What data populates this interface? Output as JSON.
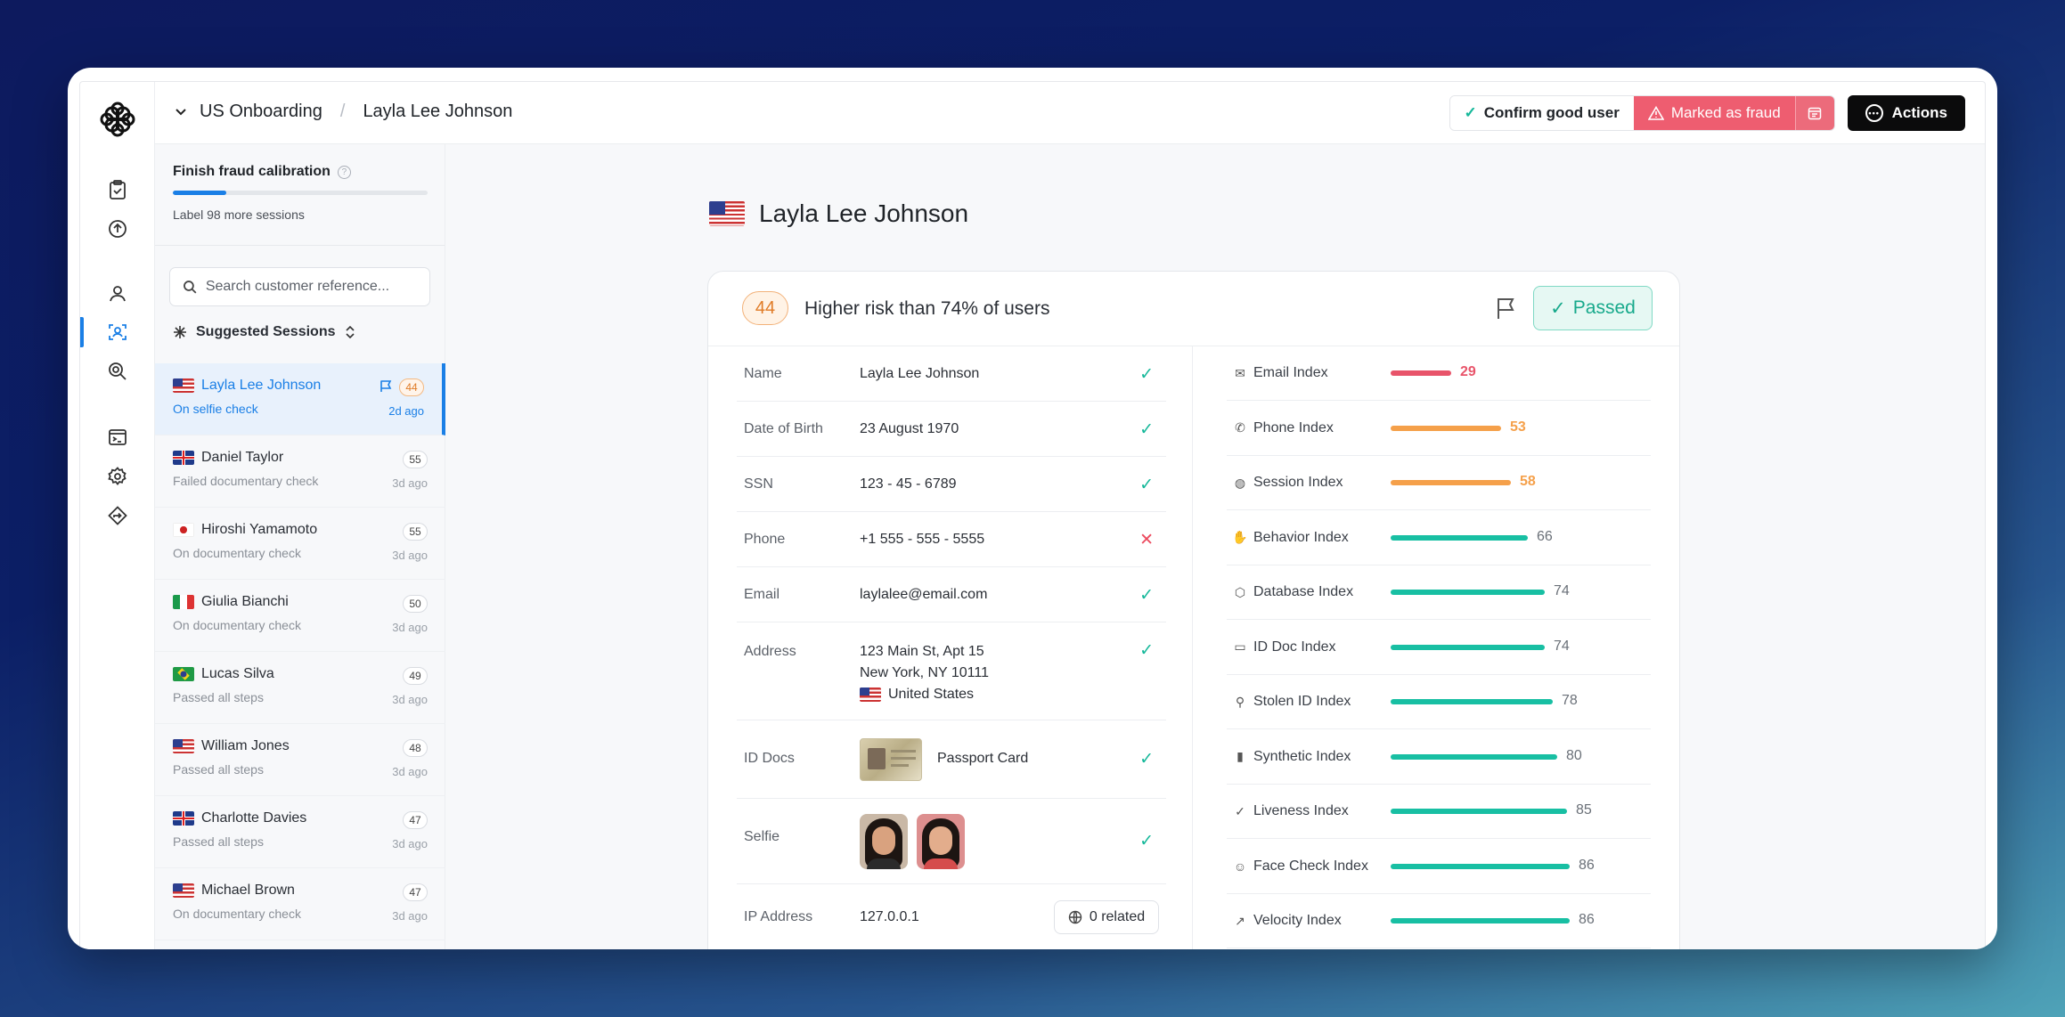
{
  "header": {
    "workspace": "US Onboarding",
    "separator": "/",
    "current": "Layla Lee Johnson",
    "confirm_label": "Confirm good user",
    "fraud_label": "Marked as fraud",
    "actions_label": "Actions"
  },
  "calibration": {
    "title": "Finish fraud calibration",
    "subtitle": "Label 98 more sessions",
    "progress": 0.21
  },
  "search": {
    "placeholder": "Search customer reference..."
  },
  "suggested": {
    "label": "Suggested Sessions"
  },
  "sessions": [
    {
      "name": "Layla Lee Johnson",
      "status": "On selfie check",
      "score": "44",
      "ago": "2d ago",
      "flag": "us",
      "active": true
    },
    {
      "name": "Daniel Taylor",
      "status": "Failed documentary check",
      "score": "55",
      "ago": "3d ago",
      "flag": "uk"
    },
    {
      "name": "Hiroshi Yamamoto",
      "status": "On documentary check",
      "score": "55",
      "ago": "3d ago",
      "flag": "jp"
    },
    {
      "name": "Giulia Bianchi",
      "status": "On documentary check",
      "score": "50",
      "ago": "3d ago",
      "flag": "it"
    },
    {
      "name": "Lucas Silva",
      "status": "Passed all steps",
      "score": "49",
      "ago": "3d ago",
      "flag": "br"
    },
    {
      "name": "William Jones",
      "status": "Passed all steps",
      "score": "48",
      "ago": "3d ago",
      "flag": "us"
    },
    {
      "name": "Charlotte Davies",
      "status": "Passed all steps",
      "score": "47",
      "ago": "3d ago",
      "flag": "uk"
    },
    {
      "name": "Michael Brown",
      "status": "On documentary check",
      "score": "47",
      "ago": "3d ago",
      "flag": "us"
    }
  ],
  "profile": {
    "name": "Layla Lee Johnson",
    "risk_score": "44",
    "risk_text": "Higher risk than 74% of users",
    "status": "Passed"
  },
  "fields": {
    "name": {
      "label": "Name",
      "value": "Layla Lee Johnson",
      "verified": true
    },
    "dob": {
      "label": "Date of Birth",
      "value": "23 August 1970",
      "verified": true
    },
    "ssn": {
      "label": "SSN",
      "value": "123 - 45 - 6789",
      "verified": true
    },
    "phone": {
      "label": "Phone",
      "value": "+1 555 - 555 - 5555",
      "verified": false
    },
    "email": {
      "label": "Email",
      "value": "laylalee@email.com",
      "verified": true
    },
    "address": {
      "label": "Address",
      "line1": "123 Main St, Apt 15",
      "line2": "New York, NY 10111",
      "country": "United States",
      "verified": true
    },
    "id_docs": {
      "label": "ID Docs",
      "value": "Passport Card",
      "verified": true
    },
    "selfie": {
      "label": "Selfie",
      "verified": true
    },
    "ip": {
      "label": "IP Address",
      "value": "127.0.0.1",
      "related": "0 related"
    }
  },
  "indexes": [
    {
      "name": "Email Index",
      "value": 29,
      "color": "#e8546a",
      "icon": "mail-icon"
    },
    {
      "name": "Phone Index",
      "value": 53,
      "color": "#f5a04a",
      "icon": "phone-icon"
    },
    {
      "name": "Session Index",
      "value": 58,
      "color": "#f5a04a",
      "icon": "globe-icon"
    },
    {
      "name": "Behavior Index",
      "value": 66,
      "color": "#18bfa3",
      "icon": "hand-icon"
    },
    {
      "name": "Database Index",
      "value": 74,
      "color": "#18bfa3",
      "icon": "cube-icon"
    },
    {
      "name": "ID Doc Index",
      "value": 74,
      "color": "#18bfa3",
      "icon": "id-card-icon"
    },
    {
      "name": "Stolen ID Index",
      "value": 78,
      "color": "#18bfa3",
      "icon": "running-icon"
    },
    {
      "name": "Synthetic Index",
      "value": 80,
      "color": "#18bfa3",
      "icon": "bars-icon"
    },
    {
      "name": "Liveness Index",
      "value": 85,
      "color": "#18bfa3",
      "icon": "user-check-icon"
    },
    {
      "name": "Face Check Index",
      "value": 86,
      "color": "#18bfa3",
      "icon": "smile-icon"
    },
    {
      "name": "Velocity Index",
      "value": 86,
      "color": "#18bfa3",
      "icon": "arrow-up-right-icon"
    }
  ],
  "colors": {
    "accent": "#1a7fe6",
    "good": "#16b89a",
    "fraud": "#ee5d70",
    "warn": "#e07b26"
  }
}
